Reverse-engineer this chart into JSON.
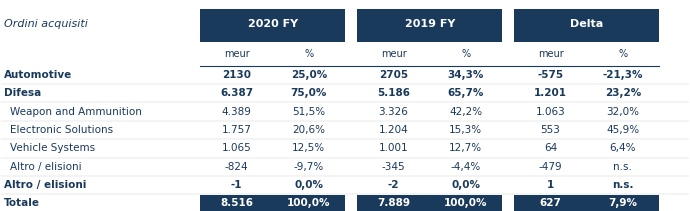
{
  "title": "Ordini acquisiti",
  "header_bg": "#1a3a5c",
  "header_text": "#ffffff",
  "subheader_text": "#1a3a5c",
  "body_bg": "#ffffff",
  "total_bg": "#1a3a5c",
  "total_text": "#ffffff",
  "row_text_normal": "#1a3a5c",
  "col_groups": [
    "2020 FY",
    "2019 FY",
    "Delta"
  ],
  "col_subheaders": [
    "meur",
    "%",
    "meur",
    "%",
    "meur",
    "%"
  ],
  "rows": [
    {
      "label": "Automotive",
      "bold": true,
      "is_total": false,
      "values": [
        "2130",
        "25,0%",
        "2705",
        "34,3%",
        "-575",
        "-21,3%"
      ]
    },
    {
      "label": "Difesa",
      "bold": true,
      "is_total": false,
      "values": [
        "6.387",
        "75,0%",
        "5.186",
        "65,7%",
        "1.201",
        "23,2%"
      ]
    },
    {
      "label": "Weapon and Ammunition",
      "bold": false,
      "is_total": false,
      "values": [
        "4.389",
        "51,5%",
        "3.326",
        "42,2%",
        "1.063",
        "32,0%"
      ]
    },
    {
      "label": "Electronic Solutions",
      "bold": false,
      "is_total": false,
      "values": [
        "1.757",
        "20,6%",
        "1.204",
        "15,3%",
        "553",
        "45,9%"
      ]
    },
    {
      "label": "Vehicle Systems",
      "bold": false,
      "is_total": false,
      "values": [
        "1.065",
        "12,5%",
        "1.001",
        "12,7%",
        "64",
        "6,4%"
      ]
    },
    {
      "label": "Altro / elisioni",
      "bold": false,
      "is_total": false,
      "values": [
        "-824",
        "-9,7%",
        "-345",
        "-4,4%",
        "-479",
        "n.s."
      ]
    },
    {
      "label": "Altro / elisioni",
      "bold": true,
      "is_total": false,
      "values": [
        "-1",
        "0,0%",
        "-2",
        "0,0%",
        "1",
        "n.s."
      ]
    },
    {
      "label": "Totale",
      "bold": true,
      "is_total": true,
      "values": [
        "8.516",
        "100,0%",
        "7.889",
        "100,0%",
        "627",
        "7,9%"
      ]
    }
  ],
  "figsize": [
    6.9,
    2.11
  ],
  "dpi": 100
}
